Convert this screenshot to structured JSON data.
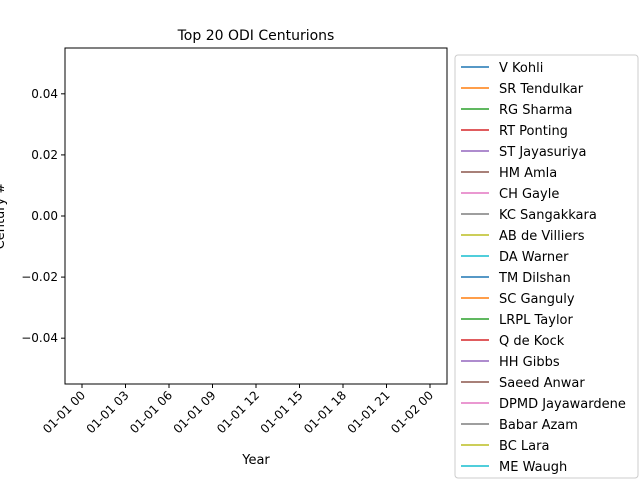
{
  "chart_data": {
    "type": "line",
    "title": "Top 20 ODI Centurions",
    "xlabel": "Year",
    "ylabel": "Century #",
    "x_ticks": [
      "01-01 00",
      "01-01 03",
      "01-01 06",
      "01-01 09",
      "01-01 12",
      "01-01 15",
      "01-01 18",
      "01-01 21",
      "01-02 00"
    ],
    "y_ticks": [
      "0.04",
      "0.02",
      "0.00",
      "−0.02",
      "−0.04"
    ],
    "y_tick_values": [
      0.04,
      0.02,
      0.0,
      -0.02,
      -0.04
    ],
    "ylim": [
      -0.055,
      0.055
    ],
    "grid": false,
    "legend_position": "outside-right",
    "series": [
      {
        "name": "V Kohli",
        "color": "#1f77b4",
        "values": []
      },
      {
        "name": "SR Tendulkar",
        "color": "#ff7f0e",
        "values": []
      },
      {
        "name": "RG Sharma",
        "color": "#2ca02c",
        "values": []
      },
      {
        "name": "RT Ponting",
        "color": "#d62728",
        "values": []
      },
      {
        "name": "ST Jayasuriya",
        "color": "#9467bd",
        "values": []
      },
      {
        "name": "HM Amla",
        "color": "#8c564b",
        "values": []
      },
      {
        "name": "CH Gayle",
        "color": "#e377c2",
        "values": []
      },
      {
        "name": "KC Sangakkara",
        "color": "#7f7f7f",
        "values": []
      },
      {
        "name": "AB de Villiers",
        "color": "#bcbd22",
        "values": []
      },
      {
        "name": "DA Warner",
        "color": "#17becf",
        "values": []
      },
      {
        "name": "TM Dilshan",
        "color": "#1f77b4",
        "values": []
      },
      {
        "name": "SC Ganguly",
        "color": "#ff7f0e",
        "values": []
      },
      {
        "name": "LRPL Taylor",
        "color": "#2ca02c",
        "values": []
      },
      {
        "name": "Q de Kock",
        "color": "#d62728",
        "values": []
      },
      {
        "name": "HH Gibbs",
        "color": "#9467bd",
        "values": []
      },
      {
        "name": "Saeed Anwar",
        "color": "#8c564b",
        "values": []
      },
      {
        "name": "DPMD Jayawardene",
        "color": "#e377c2",
        "values": []
      },
      {
        "name": "Babar Azam",
        "color": "#7f7f7f",
        "values": []
      },
      {
        "name": "BC Lara",
        "color": "#bcbd22",
        "values": []
      },
      {
        "name": "ME Waugh",
        "color": "#17becf",
        "values": []
      }
    ]
  }
}
